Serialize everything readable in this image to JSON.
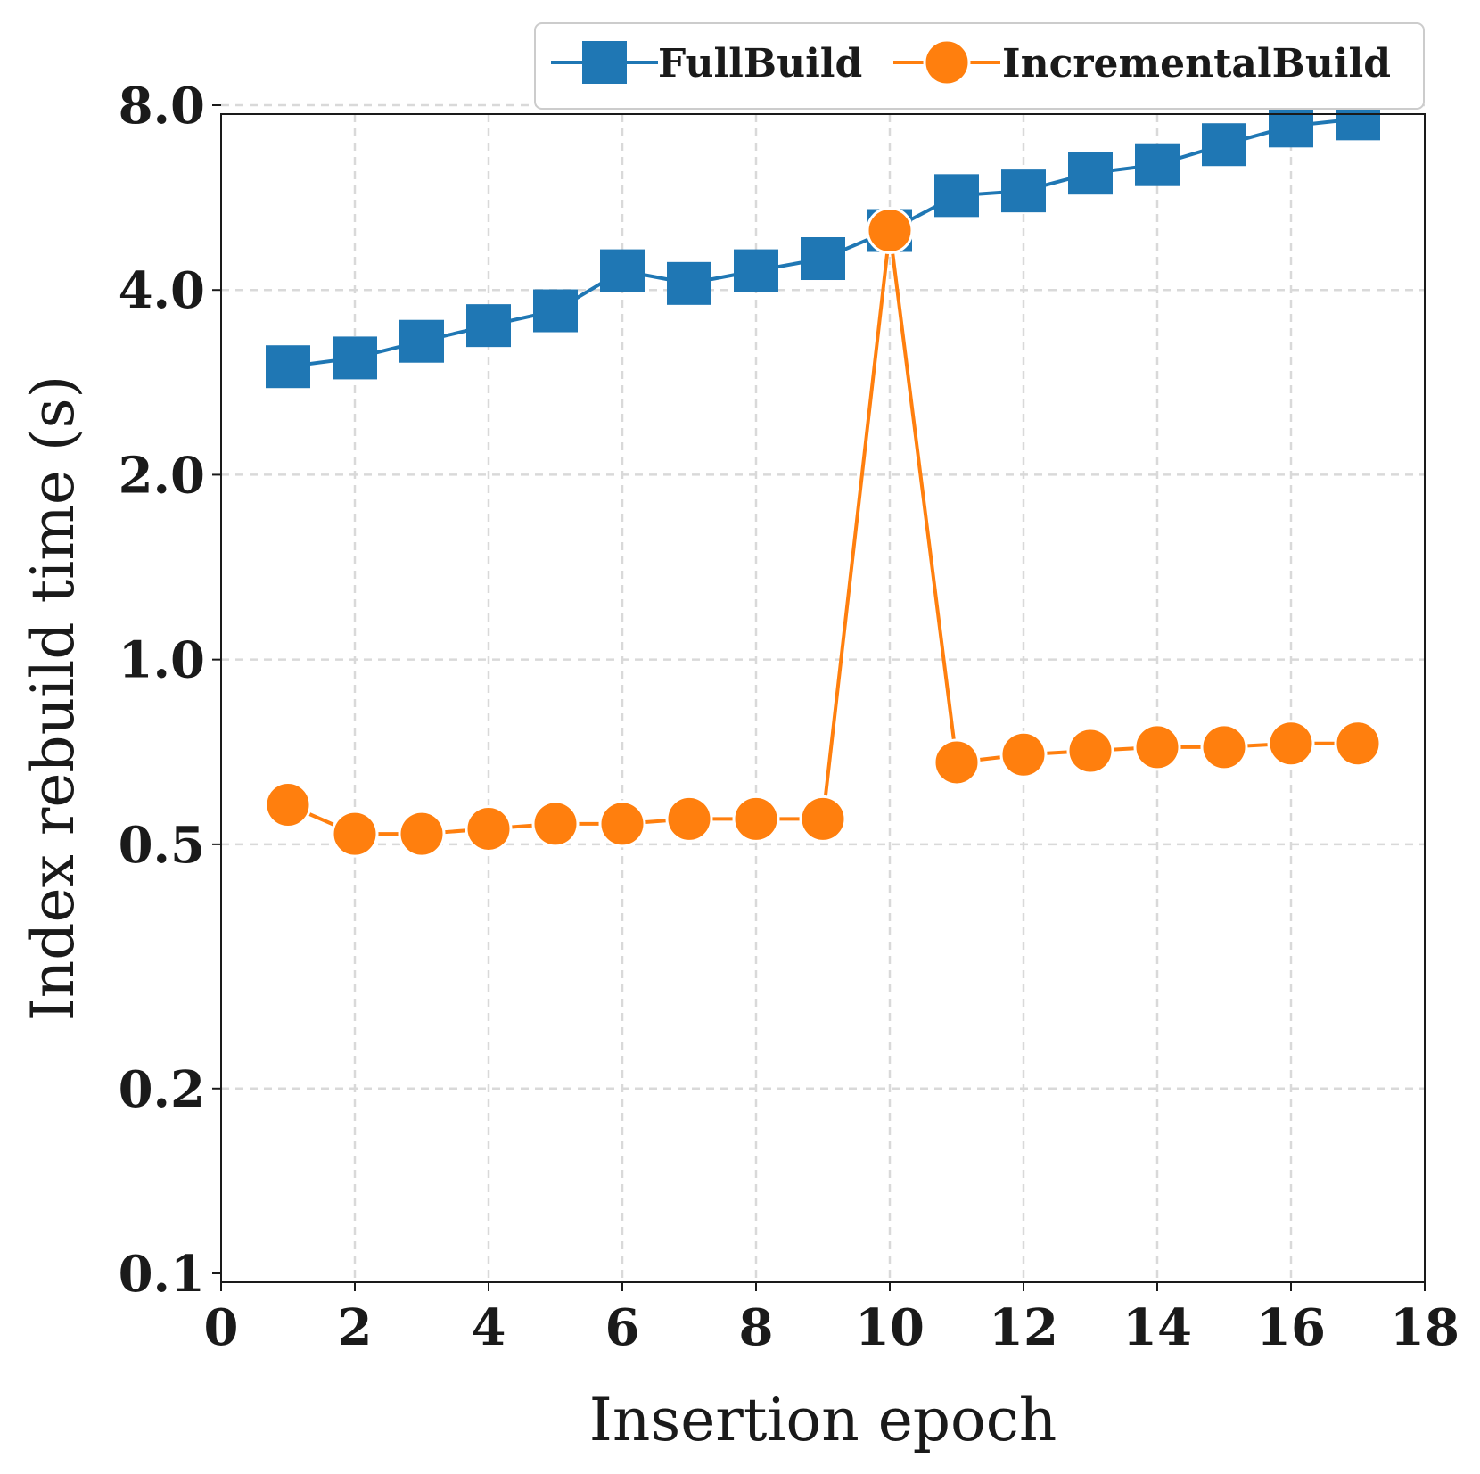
{
  "chart_data": {
    "type": "line",
    "xlabel": "Insertion epoch",
    "ylabel": "Index rebuild time (s)",
    "xlim": [
      0,
      18
    ],
    "ylim": [
      0.1,
      8.0
    ],
    "yscale": "log",
    "x_ticks": [
      "0",
      "2",
      "4",
      "6",
      "8",
      "10",
      "12",
      "14",
      "16",
      "18"
    ],
    "x_tick_values": [
      0,
      2,
      4,
      6,
      8,
      10,
      12,
      14,
      16,
      18
    ],
    "y_ticks": [
      "0.1",
      "0.2",
      "0.5",
      "1.0",
      "2.0",
      "4.0",
      "8.0"
    ],
    "y_tick_values": [
      0.1,
      0.2,
      0.5,
      1.0,
      2.0,
      4.0,
      8.0
    ],
    "grid": true,
    "legend_position": "top-right, above plot",
    "x": [
      1,
      2,
      3,
      4,
      5,
      6,
      7,
      8,
      9,
      10,
      11,
      12,
      13,
      14,
      15,
      16,
      17
    ],
    "series": [
      {
        "name": "FullBuild",
        "marker": "square",
        "color": "#1f77b4",
        "values": [
          3.0,
          3.1,
          3.3,
          3.5,
          3.7,
          4.3,
          4.1,
          4.3,
          4.5,
          5.0,
          5.7,
          5.8,
          6.2,
          6.4,
          6.9,
          7.4,
          7.6
        ]
      },
      {
        "name": "IncrementalBuild",
        "marker": "circle",
        "color": "#ff7f0e",
        "values": [
          0.58,
          0.52,
          0.52,
          0.53,
          0.54,
          0.54,
          0.55,
          0.55,
          0.55,
          5.0,
          0.68,
          0.7,
          0.71,
          0.72,
          0.72,
          0.73,
          0.73
        ]
      }
    ]
  }
}
